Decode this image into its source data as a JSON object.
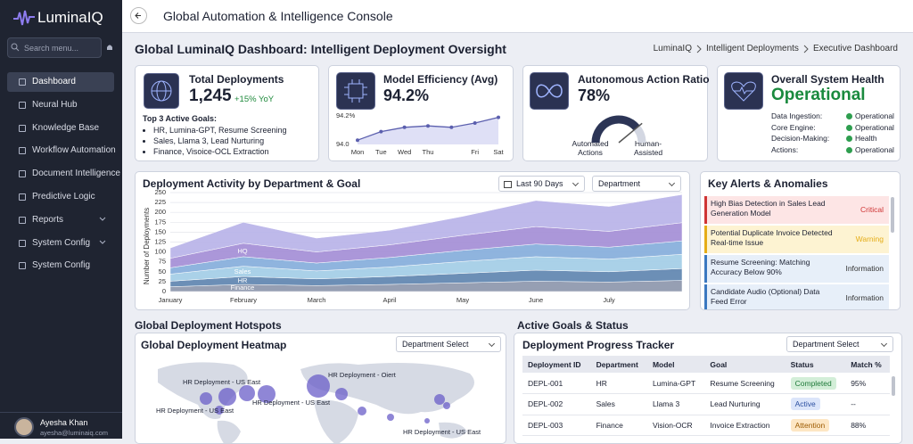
{
  "sidebar": {
    "brand": "LuminaIQ",
    "search_placeholder": "Search menu...",
    "nav": [
      "Dashboard",
      "Neural Hub",
      "Knowledge Base",
      "Workflow Automation",
      "Document Intelligence",
      "Predictive Logic",
      "Reports",
      "System Config",
      "System Config"
    ],
    "user": {
      "name": "Ayesha Khan",
      "email": "ayesha@luminaiq.com"
    }
  },
  "header": {
    "title": "Global Automation & Intelligence Console"
  },
  "page": {
    "title": "Global LuminaIQ Dashboard: Intelligent Deployment Oversight",
    "breadcrumb": [
      "LuminaIQ",
      "Intelligent Deployments",
      "Executive Dashboard"
    ]
  },
  "kpis": {
    "deployments": {
      "title": "Total Deployments",
      "value": "1,245",
      "change": "+15% YoY",
      "goals_title": "Top 3 Active Goals:",
      "goals": [
        "HR, Lumina-GPT, Resume Screening",
        "Sales, Llama 3, Lead Nurturing",
        "Finance, Visoice-OCL Extraction"
      ]
    },
    "efficiency": {
      "title": "Model Efficiency (Avg)",
      "value": "94.2%",
      "chart": {
        "type": "line",
        "categories": [
          "Mon",
          "Tue",
          "Wed",
          "Thu",
          null,
          "Fri",
          "Sat"
        ],
        "values": [
          94.03,
          94.09,
          94.12,
          94.13,
          94.12,
          94.15,
          94.19
        ],
        "ylim": [
          94.0,
          94.2
        ],
        "yticks": [
          {
            "value": 94.2,
            "label": "94.2%"
          },
          {
            "value": 94,
            "label": "94.0"
          }
        ],
        "color": "#5b5fae"
      }
    },
    "autonomy": {
      "title": "Autonomous Action Ratio",
      "gauge": {
        "type": "gauge",
        "value": 78,
        "value_label": "78%",
        "ylim": [
          0,
          100
        ],
        "color": "#2c3556"
      },
      "left_label": "Automated Actions",
      "right_label": "Human-Assisted"
    },
    "health": {
      "title": "Overall System Health",
      "status": "Operational",
      "items": [
        {
          "label": "Data Ingestion:",
          "status": "Operational"
        },
        {
          "label": "Core Engine:",
          "status": "Operational"
        },
        {
          "label": "Decision-Making:",
          "status": "Health"
        },
        {
          "label": "Actions:",
          "status": "Operational"
        }
      ]
    }
  },
  "activity": {
    "title": "Deployment Activity by Department & Goal",
    "filters": [
      "Last 90 Days",
      "Department"
    ],
    "chart": {
      "type": "area",
      "stacked": true,
      "ylabel": "Number of Deployments",
      "categories": [
        "January",
        "February",
        "March",
        "April",
        "May",
        "June",
        "July",
        null
      ],
      "series": [
        {
          "name": "Finance",
          "color": "#8d97ad",
          "values": [
            12,
            18,
            15,
            18,
            22,
            26,
            24,
            28
          ]
        },
        {
          "name": "HR",
          "color": "#5f86b0",
          "values": [
            14,
            20,
            17,
            20,
            24,
            28,
            26,
            30
          ]
        },
        {
          "name": "Sales",
          "color": "#a3cde6",
          "values": [
            18,
            26,
            20,
            24,
            30,
            34,
            32,
            36
          ]
        },
        {
          "color": "#86aedb",
          "values": [
            16,
            24,
            20,
            24,
            28,
            32,
            30,
            34
          ]
        },
        {
          "name": "HQ",
          "color": "#a48ed6",
          "values": [
            24,
            34,
            28,
            32,
            38,
            44,
            40,
            46
          ]
        },
        {
          "color": "#b8b3e8",
          "values": [
            26,
            53,
            35,
            37,
            48,
            66,
            63,
            71
          ]
        }
      ],
      "ylim": [
        0,
        250
      ],
      "yticks": [
        0,
        25,
        50,
        75,
        100,
        125,
        150,
        175,
        200,
        225,
        250
      ],
      "grid": true
    }
  },
  "alerts": {
    "title": "Key Alerts & Anomalies",
    "items": [
      {
        "text": "High Bias Detection in Sales Lead Generation Model",
        "level": "Critical",
        "color": "#cf3434"
      },
      {
        "text": "Potential Duplicate Invoice Detected Real-time Issue",
        "level": "Warning",
        "color": "#e5ad17"
      },
      {
        "text": "Resume Screening: Matching Accuracy Below 90%",
        "level": "Information",
        "color": "#3b78c0"
      },
      {
        "text": "Candidate Audio (Optional) Data Feed Error",
        "level": "Information",
        "color": "#3b78c0"
      }
    ]
  },
  "hotspots": {
    "section_title": "Global Deployment Hotspots",
    "title": "Global Deployment Heatmap",
    "filter": "Department Select",
    "labels": [
      "HR Deployment - US East",
      "HR Deployment - Oiert",
      "HR Deployment - US East",
      "HR Deployment - US East",
      "HR Deployment - US East"
    ]
  },
  "goals": {
    "section_title": "Active Goals & Status",
    "title": "Deployment Progress Tracker",
    "filter": "Department Select",
    "columns": [
      "Deployment ID",
      "Department",
      "Model",
      "Goal",
      "Status",
      "Match %"
    ],
    "rows": [
      [
        "DEPL-001",
        "HR",
        "Lumina-GPT",
        "Resume Screening",
        "Completed",
        "95%"
      ],
      [
        "DEPL-002",
        "Sales",
        "Llama 3",
        "Lead Nurturing",
        "Active",
        "--"
      ],
      [
        "DEPL-003",
        "Finance",
        "Vision-OCR",
        "Invoice Extraction",
        "Attention",
        "88%"
      ]
    ]
  }
}
